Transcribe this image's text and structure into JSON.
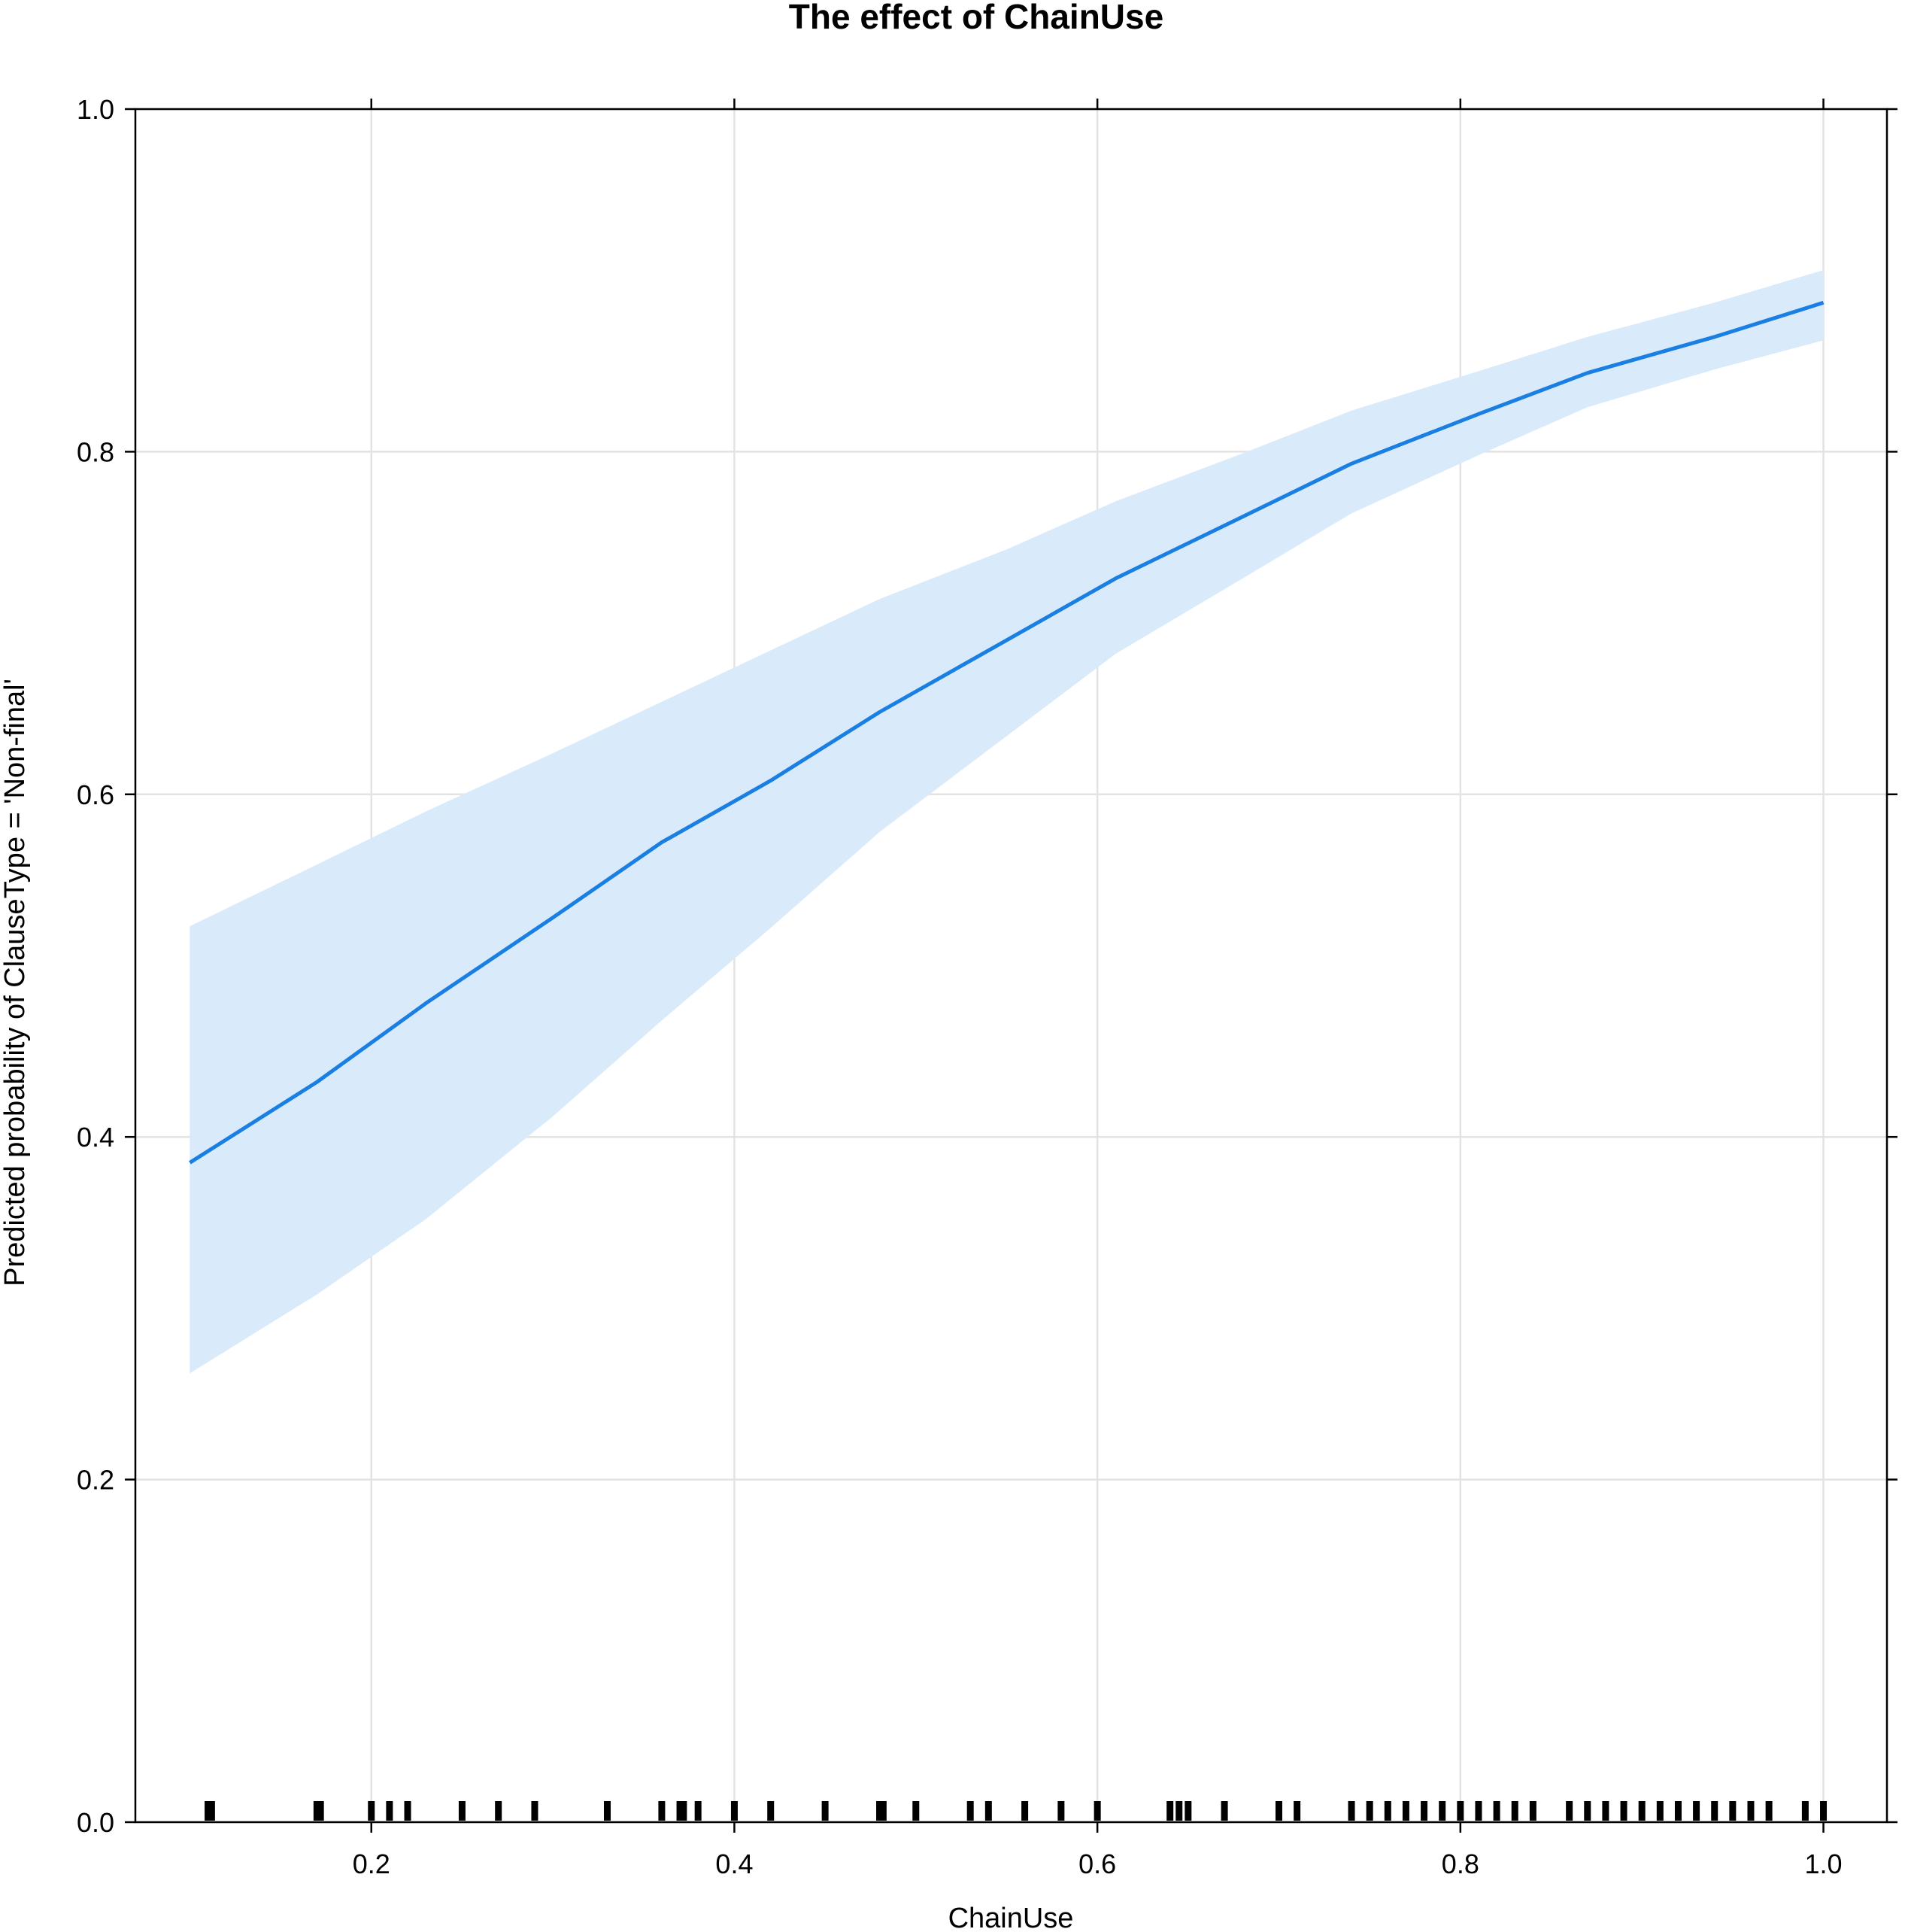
{
  "chart_data": {
    "type": "line",
    "title": "The effect of ChainUse",
    "xlabel": "ChainUse",
    "ylabel": "Predicted probability of ClauseType = 'Non-final'",
    "xlim": [
      0.07,
      1.035
    ],
    "ylim": [
      0.0,
      1.0
    ],
    "x_ticks": [
      "0.2",
      "0.4",
      "0.6",
      "0.8",
      "1.0"
    ],
    "y_ticks": [
      "0.0",
      "0.2",
      "0.4",
      "0.6",
      "0.8",
      "1.0"
    ],
    "grid": true,
    "series": [
      {
        "x": [
          0.1,
          0.17,
          0.23,
          0.3,
          0.36,
          0.42,
          0.48,
          0.55,
          0.61,
          0.68,
          0.74,
          0.81,
          0.87,
          0.94,
          1.0
        ],
        "y": [
          0.385,
          0.432,
          0.478,
          0.528,
          0.572,
          0.608,
          0.648,
          0.69,
          0.726,
          0.762,
          0.793,
          0.822,
          0.846,
          0.867,
          0.887
        ],
        "lower": [
          0.262,
          0.308,
          0.352,
          0.412,
          0.468,
          0.522,
          0.578,
          0.634,
          0.682,
          0.726,
          0.764,
          0.798,
          0.826,
          0.848,
          0.865
        ],
        "upper": [
          0.523,
          0.559,
          0.59,
          0.624,
          0.654,
          0.684,
          0.714,
          0.743,
          0.771,
          0.799,
          0.824,
          0.847,
          0.867,
          0.887,
          0.906
        ]
      }
    ],
    "rug": [
      0.11,
      0.112,
      0.17,
      0.172,
      0.2,
      0.21,
      0.22,
      0.25,
      0.27,
      0.29,
      0.33,
      0.36,
      0.37,
      0.372,
      0.38,
      0.4,
      0.42,
      0.45,
      0.48,
      0.482,
      0.5,
      0.53,
      0.54,
      0.56,
      0.58,
      0.6,
      0.64,
      0.645,
      0.65,
      0.67,
      0.7,
      0.71,
      0.74,
      0.75,
      0.76,
      0.77,
      0.78,
      0.79,
      0.8,
      0.81,
      0.82,
      0.83,
      0.84,
      0.86,
      0.87,
      0.88,
      0.89,
      0.9,
      0.91,
      0.92,
      0.93,
      0.94,
      0.95,
      0.96,
      0.97,
      0.99,
      1.0
    ],
    "colors": {
      "line": "#1a7fe3",
      "band": "#d9eafb",
      "grid": "#e3e3e3"
    }
  }
}
